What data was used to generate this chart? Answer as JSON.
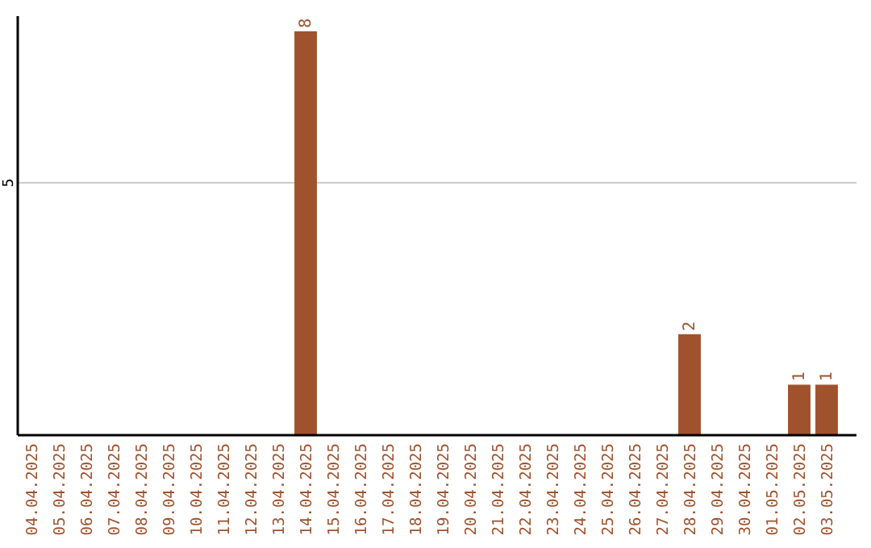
{
  "chart_data": {
    "type": "bar",
    "categories": [
      "04.04.2025",
      "05.04.2025",
      "06.04.2025",
      "07.04.2025",
      "08.04.2025",
      "09.04.2025",
      "10.04.2025",
      "11.04.2025",
      "12.04.2025",
      "13.04.2025",
      "14.04.2025",
      "15.04.2025",
      "16.04.2025",
      "17.04.2025",
      "18.04.2025",
      "19.04.2025",
      "20.04.2025",
      "21.04.2025",
      "22.04.2025",
      "23.04.2025",
      "24.04.2025",
      "25.04.2025",
      "26.04.2025",
      "27.04.2025",
      "28.04.2025",
      "29.04.2025",
      "30.04.2025",
      "01.05.2025",
      "02.05.2025",
      "03.05.2025"
    ],
    "values": [
      0,
      0,
      0,
      0,
      0,
      0,
      0,
      0,
      0,
      0,
      8,
      0,
      0,
      0,
      0,
      0,
      0,
      0,
      0,
      0,
      0,
      0,
      0,
      0,
      2,
      0,
      0,
      0,
      1,
      1
    ],
    "value_labels": [
      null,
      null,
      null,
      null,
      null,
      null,
      null,
      null,
      null,
      null,
      "8",
      null,
      null,
      null,
      null,
      null,
      null,
      null,
      null,
      null,
      null,
      null,
      null,
      null,
      "2",
      null,
      null,
      null,
      "1",
      "1"
    ],
    "color": "#a0522d",
    "ylim": [
      0,
      8.3
    ],
    "yticks": [
      5
    ],
    "grid": "y"
  }
}
